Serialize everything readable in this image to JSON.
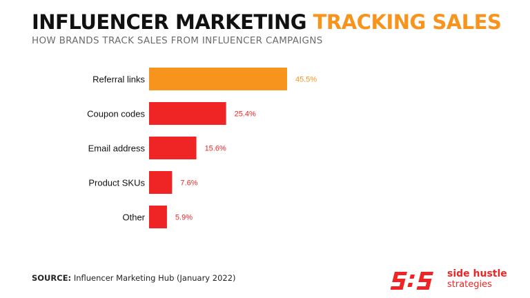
{
  "header": {
    "title_part1": "INFLUENCER MARKETING",
    "title_part2": "TRACKING SALES",
    "subtitle": "HOW BRANDS TRACK SALES FROM INFLUENCER CAMPAIGNS"
  },
  "footer": {
    "source_label": "SOURCE:",
    "source_text": "Influencer Marketing Hub (January 2022)"
  },
  "brand": {
    "name_line1": "side hustle",
    "name_line2": "strategies",
    "logo_icon": "shs-mark-icon",
    "color": "#ef2525"
  },
  "colors": {
    "highlight": "#f7941d",
    "bar": "#ef2525",
    "title_dark": "#111111"
  },
  "chart_data": {
    "type": "bar",
    "orientation": "horizontal",
    "categories": [
      "Referral links",
      "Coupon codes",
      "Email address",
      "Product SKUs",
      "Other"
    ],
    "values": [
      45.5,
      25.4,
      15.6,
      7.6,
      5.9
    ],
    "value_labels": [
      "45.5%",
      "25.4%",
      "15.6%",
      "7.6%",
      "5.9%"
    ],
    "unit": "%",
    "highlight_index": 0,
    "grid": false,
    "legend": "none",
    "xlim": [
      0,
      45.5
    ]
  }
}
